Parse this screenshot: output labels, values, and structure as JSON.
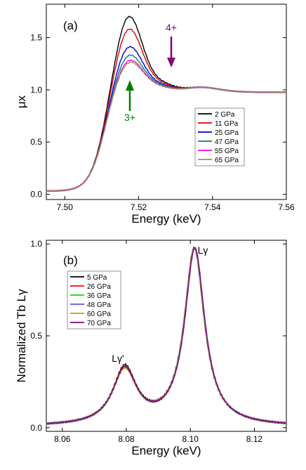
{
  "chart_data": [
    {
      "type": "line",
      "panel_label": "(a)",
      "xlabel": "Energy (keV)",
      "ylabel": "μx",
      "xlim": [
        7.495,
        7.56
      ],
      "ylim": [
        -0.05,
        1.82
      ],
      "xticks": [
        7.5,
        7.52,
        7.54,
        7.56
      ],
      "xtick_labels": [
        "7.50",
        "7.52",
        "7.54",
        "7.56"
      ],
      "yticks": [
        0.0,
        0.5,
        1.0,
        1.5
      ],
      "ytick_labels": [
        "0.0",
        "0.5",
        "1.0",
        "1.5"
      ],
      "legend_position": "right-middle",
      "annotations": [
        {
          "text": "4+",
          "x": 7.5285,
          "y": 1.54,
          "arrow_to": [
            7.5285,
            1.2
          ],
          "color": "#800080"
        },
        {
          "text": "3+",
          "x": 7.5184,
          "y": 0.68,
          "arrow_to": [
            7.5184,
            1.05
          ],
          "color": "#008000"
        }
      ],
      "series": [
        {
          "name": "2 GPa",
          "color": "#000000",
          "peak": 1.69,
          "shoulder": 0.045
        },
        {
          "name": "11 GPa",
          "color": "#e00000",
          "peak": 1.57,
          "shoulder": 0.035
        },
        {
          "name": "25 GPa",
          "color": "#0000d0",
          "peak": 1.4,
          "shoulder": 0.025
        },
        {
          "name": "47 GPa",
          "color": "#008080",
          "peak": 1.32,
          "shoulder": 0.018
        },
        {
          "name": "55 GPa",
          "color": "#ff00ff",
          "peak": 1.27,
          "shoulder": 0.012
        },
        {
          "name": "65 GPa",
          "color": "#a09050",
          "peak": 1.25,
          "shoulder": 0.01
        }
      ]
    },
    {
      "type": "line",
      "panel_label": "(b)",
      "xlabel": "Energy (keV)",
      "ylabel": "Normalized Tb Lγ",
      "xlim": [
        8.055,
        8.13
      ],
      "ylim": [
        -0.02,
        1.02
      ],
      "xticks": [
        8.06,
        8.08,
        8.1,
        8.12
      ],
      "xtick_labels": [
        "8.06",
        "8.08",
        "8.10",
        "8.12"
      ],
      "yticks": [
        0.0,
        0.5,
        1.0
      ],
      "ytick_labels": [
        "0.0",
        "0.5",
        "1.0"
      ],
      "legend_position": "top-left",
      "annotations": [
        {
          "text": "Lγ'",
          "x": 8.0795,
          "y": 0.385
        },
        {
          "text": "Lγ",
          "x": 8.099,
          "y": 1.015
        }
      ],
      "series": [
        {
          "name": "5 GPa",
          "color": "#000000",
          "lg_peak": 0.31
        },
        {
          "name": "26 GPa",
          "color": "#ff0000",
          "lg_peak": 0.305
        },
        {
          "name": "36 GPa",
          "color": "#00dd00",
          "lg_peak": 0.3
        },
        {
          "name": "48 GPa",
          "color": "#5555ff",
          "lg_peak": 0.295
        },
        {
          "name": "60 GPa",
          "color": "#b0a040",
          "lg_peak": 0.29
        },
        {
          "name": "70 GPa",
          "color": "#800080",
          "lg_peak": 0.3
        }
      ]
    }
  ]
}
